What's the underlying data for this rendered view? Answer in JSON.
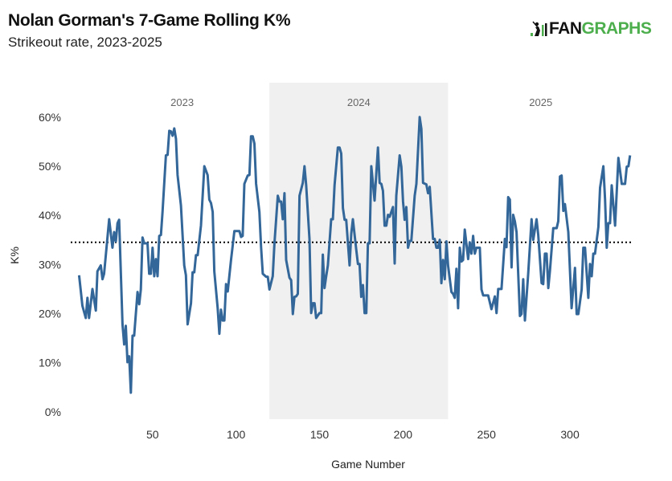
{
  "chart_data": {
    "type": "line",
    "title": "Nolan Gorman's 7-Game Rolling K%",
    "subtitle": "Strikeout rate, 2023-2025",
    "xlabel": "Game Number",
    "ylabel": "K%",
    "xlim": [
      1,
      338
    ],
    "ylim": [
      -1.5,
      67
    ],
    "xticks": [
      50,
      100,
      150,
      200,
      250,
      300
    ],
    "yticks": [
      0,
      10,
      20,
      30,
      40,
      50,
      60
    ],
    "ytick_labels": [
      "0%",
      "10%",
      "20%",
      "30%",
      "40%",
      "50%",
      "60%"
    ],
    "grid": false,
    "line_color": "#336699",
    "reference_line": {
      "value": 34.5,
      "style": "dotted",
      "color": "#000000"
    },
    "seasons": [
      {
        "label": "2023",
        "start": 1,
        "end": 120,
        "shaded": false
      },
      {
        "label": "2024",
        "start": 120,
        "end": 227,
        "shaded": true,
        "color": "#f0f0f0"
      },
      {
        "label": "2025",
        "start": 227,
        "end": 338,
        "shaded": false
      }
    ],
    "points": [
      [
        6,
        27.8
      ],
      [
        8,
        21.6
      ],
      [
        10,
        19.1
      ],
      [
        11,
        23.2
      ],
      [
        12,
        19.1
      ],
      [
        14,
        25.0
      ],
      [
        16,
        20.6
      ],
      [
        17,
        28.6
      ],
      [
        19,
        29.8
      ],
      [
        20,
        27.0
      ],
      [
        21,
        28.1
      ],
      [
        24,
        39.2
      ],
      [
        26,
        33.4
      ],
      [
        27,
        36.6
      ],
      [
        28,
        34.7
      ],
      [
        29,
        38.4
      ],
      [
        30,
        39.1
      ],
      [
        32,
        17.8
      ],
      [
        33,
        13.7
      ],
      [
        34,
        17.5
      ],
      [
        35,
        10.1
      ],
      [
        36,
        11.3
      ],
      [
        37,
        3.9
      ],
      [
        38,
        15.5
      ],
      [
        39,
        15.5
      ],
      [
        41,
        24.4
      ],
      [
        42,
        21.9
      ],
      [
        43,
        24.9
      ],
      [
        44,
        35.5
      ],
      [
        45,
        34.3
      ],
      [
        47,
        34.3
      ],
      [
        48,
        28.1
      ],
      [
        49,
        28.1
      ],
      [
        50,
        33.4
      ],
      [
        51,
        27.6
      ],
      [
        52,
        31.1
      ],
      [
        53,
        27.6
      ],
      [
        54,
        35.8
      ],
      [
        55,
        36.0
      ],
      [
        56,
        40.7
      ],
      [
        58,
        52.2
      ],
      [
        59,
        52.3
      ],
      [
        60,
        57.2
      ],
      [
        61,
        57.1
      ],
      [
        62,
        56.2
      ],
      [
        63,
        57.7
      ],
      [
        64,
        55.6
      ],
      [
        65,
        48.2
      ],
      [
        67,
        42.0
      ],
      [
        69,
        29.8
      ],
      [
        70,
        27.8
      ],
      [
        71,
        17.8
      ],
      [
        73,
        22.1
      ],
      [
        74,
        28.4
      ],
      [
        75,
        28.4
      ],
      [
        76,
        31.9
      ],
      [
        77,
        31.9
      ],
      [
        79,
        37.9
      ],
      [
        81,
        50.0
      ],
      [
        83,
        48.2
      ],
      [
        84,
        43.2
      ],
      [
        85,
        42.5
      ],
      [
        86,
        40.7
      ],
      [
        87,
        28.6
      ],
      [
        89,
        21.1
      ],
      [
        90,
        15.9
      ],
      [
        91,
        20.8
      ],
      [
        92,
        18.6
      ],
      [
        93,
        18.6
      ],
      [
        94,
        26.0
      ],
      [
        95,
        24.5
      ],
      [
        97,
        30.9
      ],
      [
        99,
        36.8
      ],
      [
        102,
        36.8
      ],
      [
        103,
        35.6
      ],
      [
        104,
        35.8
      ],
      [
        105,
        46.4
      ],
      [
        107,
        48.1
      ],
      [
        108,
        48.2
      ],
      [
        109,
        56.1
      ],
      [
        110,
        56.1
      ],
      [
        111,
        54.6
      ],
      [
        112,
        46.4
      ],
      [
        114,
        40.7
      ],
      [
        115,
        33.5
      ],
      [
        116,
        28.1
      ],
      [
        118,
        27.5
      ],
      [
        119,
        27.5
      ],
      [
        120,
        24.9
      ],
      [
        122,
        27.6
      ],
      [
        123,
        34.2
      ],
      [
        125,
        44.0
      ],
      [
        126,
        42.8
      ],
      [
        127,
        42.8
      ],
      [
        128,
        39.2
      ],
      [
        129,
        44.5
      ],
      [
        130,
        30.9
      ],
      [
        132,
        27.3
      ],
      [
        133,
        26.8
      ],
      [
        134,
        19.9
      ],
      [
        135,
        23.4
      ],
      [
        136,
        23.5
      ],
      [
        137,
        24.0
      ],
      [
        138,
        44.0
      ],
      [
        140,
        46.6
      ],
      [
        141,
        50.0
      ],
      [
        142,
        46.1
      ],
      [
        144,
        35.2
      ],
      [
        145,
        20.1
      ],
      [
        146,
        22.1
      ],
      [
        147,
        22.1
      ],
      [
        148,
        19.1
      ],
      [
        150,
        20.1
      ],
      [
        151,
        20.1
      ],
      [
        152,
        32.0
      ],
      [
        153,
        25.2
      ],
      [
        154,
        27.6
      ],
      [
        155,
        29.8
      ],
      [
        157,
        39.2
      ],
      [
        158,
        39.2
      ],
      [
        159,
        46.1
      ],
      [
        161,
        53.8
      ],
      [
        162,
        53.8
      ],
      [
        163,
        52.6
      ],
      [
        164,
        41.5
      ],
      [
        165,
        39.1
      ],
      [
        166,
        39.1
      ],
      [
        168,
        29.8
      ],
      [
        169,
        36.3
      ],
      [
        170,
        39.2
      ],
      [
        172,
        33.0
      ],
      [
        173,
        30.1
      ],
      [
        174,
        30.1
      ],
      [
        175,
        23.4
      ],
      [
        176,
        25.8
      ],
      [
        177,
        20.1
      ],
      [
        178,
        20.1
      ],
      [
        179,
        34.3
      ],
      [
        180,
        34.3
      ],
      [
        181,
        50.0
      ],
      [
        183,
        43.0
      ],
      [
        185,
        53.8
      ],
      [
        186,
        46.6
      ],
      [
        187,
        46.4
      ],
      [
        188,
        45.0
      ],
      [
        189,
        37.9
      ],
      [
        190,
        37.9
      ],
      [
        191,
        40.1
      ],
      [
        192,
        39.7
      ],
      [
        194,
        41.7
      ],
      [
        195,
        30.2
      ],
      [
        196,
        44.0
      ],
      [
        198,
        52.2
      ],
      [
        199,
        49.9
      ],
      [
        200,
        42.8
      ],
      [
        201,
        39.1
      ],
      [
        202,
        41.7
      ],
      [
        203,
        33.4
      ],
      [
        204,
        34.8
      ],
      [
        205,
        34.8
      ],
      [
        207,
        44.0
      ],
      [
        208,
        46.4
      ],
      [
        210,
        60.0
      ],
      [
        211,
        57.6
      ],
      [
        212,
        46.6
      ],
      [
        214,
        46.3
      ],
      [
        215,
        44.5
      ],
      [
        216,
        45.8
      ],
      [
        218,
        35.2
      ],
      [
        219,
        35.2
      ],
      [
        220,
        33.4
      ],
      [
        221,
        33.4
      ],
      [
        222,
        35.0
      ],
      [
        223,
        26.2
      ],
      [
        224,
        30.9
      ],
      [
        225,
        27.0
      ],
      [
        226,
        34.7
      ],
      [
        227,
        29.8
      ],
      [
        229,
        24.4
      ],
      [
        230,
        24.0
      ],
      [
        231,
        23.2
      ],
      [
        232,
        29.1
      ],
      [
        233,
        21.1
      ],
      [
        234,
        33.4
      ],
      [
        235,
        30.6
      ],
      [
        236,
        30.9
      ],
      [
        237,
        37.1
      ],
      [
        239,
        31.1
      ],
      [
        240,
        34.5
      ],
      [
        241,
        32.2
      ],
      [
        242,
        35.8
      ],
      [
        243,
        32.2
      ],
      [
        244,
        33.4
      ],
      [
        246,
        33.4
      ],
      [
        247,
        24.9
      ],
      [
        248,
        23.7
      ],
      [
        251,
        23.7
      ],
      [
        253,
        20.9
      ],
      [
        255,
        23.5
      ],
      [
        256,
        20.1
      ],
      [
        257,
        25.0
      ],
      [
        259,
        25.0
      ],
      [
        261,
        35.2
      ],
      [
        262,
        33.5
      ],
      [
        263,
        43.7
      ],
      [
        264,
        43.2
      ],
      [
        265,
        29.4
      ],
      [
        266,
        40.1
      ],
      [
        267,
        38.8
      ],
      [
        268,
        36.6
      ],
      [
        270,
        19.5
      ],
      [
        271,
        19.9
      ],
      [
        272,
        27.0
      ],
      [
        273,
        18.6
      ],
      [
        275,
        28.1
      ],
      [
        277,
        39.2
      ],
      [
        278,
        35.0
      ],
      [
        280,
        39.2
      ],
      [
        281,
        36.0
      ],
      [
        283,
        26.2
      ],
      [
        284,
        26.0
      ],
      [
        285,
        32.2
      ],
      [
        286,
        32.2
      ],
      [
        287,
        25.2
      ],
      [
        288,
        28.6
      ],
      [
        290,
        37.4
      ],
      [
        292,
        37.4
      ],
      [
        293,
        38.8
      ],
      [
        294,
        47.9
      ],
      [
        295,
        48.1
      ],
      [
        296,
        40.9
      ],
      [
        297,
        42.3
      ],
      [
        299,
        36.6
      ],
      [
        301,
        21.1
      ],
      [
        303,
        29.3
      ],
      [
        304,
        19.9
      ],
      [
        305,
        19.9
      ],
      [
        307,
        24.9
      ],
      [
        308,
        33.4
      ],
      [
        309,
        33.4
      ],
      [
        311,
        23.2
      ],
      [
        312,
        30.1
      ],
      [
        313,
        27.6
      ],
      [
        314,
        32.2
      ],
      [
        315,
        32.2
      ],
      [
        317,
        37.6
      ],
      [
        318,
        45.6
      ],
      [
        320,
        50.0
      ],
      [
        321,
        43.3
      ],
      [
        322,
        33.4
      ],
      [
        323,
        38.4
      ],
      [
        324,
        38.4
      ],
      [
        325,
        46.1
      ],
      [
        327,
        37.9
      ],
      [
        329,
        51.7
      ],
      [
        331,
        46.4
      ],
      [
        333,
        46.4
      ],
      [
        334,
        49.9
      ],
      [
        335,
        50.0
      ],
      [
        336,
        52.2
      ]
    ]
  },
  "logo": {
    "text_dark": "FAN",
    "text_green": "GRAPHS",
    "icon": "batter-bars-icon"
  }
}
